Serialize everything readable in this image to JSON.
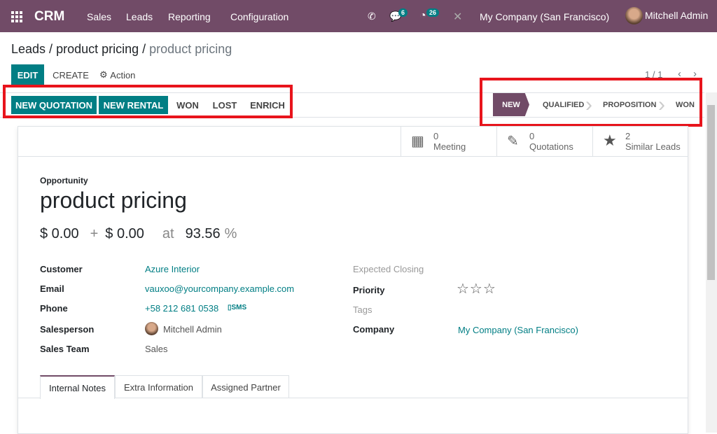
{
  "navbar": {
    "app": "CRM",
    "menus": [
      "Sales",
      "Leads",
      "Reporting",
      "Configuration"
    ],
    "messages_count": "6",
    "activities_count": "26",
    "company": "My Company (San Francisco)",
    "user": "Mitchell Admin",
    "color": "#714B67"
  },
  "breadcrumb": {
    "root": "Leads",
    "mid": "product pricing",
    "current": "product pricing"
  },
  "toolbar": {
    "edit": "EDIT",
    "create": "CREATE",
    "action": "Action",
    "pager": "1 / 1"
  },
  "statusbar": {
    "buttons": [
      "NEW QUOTATION",
      "NEW RENTAL",
      "WON",
      "LOST",
      "ENRICH"
    ],
    "stages": [
      "NEW",
      "QUALIFIED",
      "PROPOSITION",
      "WON"
    ],
    "active_stage": "NEW"
  },
  "smart_buttons": [
    {
      "count": "0",
      "label": "Meeting",
      "icon": "calendar-icon"
    },
    {
      "count": "0",
      "label": "Quotations",
      "icon": "edit-icon"
    },
    {
      "count": "2",
      "label": "Similar Leads",
      "icon": "star-icon"
    }
  ],
  "form": {
    "type": "Opportunity",
    "title": "product pricing",
    "revenue": "$ 0.00",
    "plus": "+",
    "recurring": "$ 0.00",
    "at": "at",
    "probability": "93.56",
    "pct": "%",
    "left": [
      {
        "label": "Customer",
        "value": "Azure Interior"
      },
      {
        "label": "Email",
        "value": "vauxoo@yourcompany.example.com"
      },
      {
        "label": "Phone",
        "value": "+58 212 681 0538",
        "extra": "SMS"
      },
      {
        "label": "Salesperson",
        "value": "Mitchell Admin"
      },
      {
        "label": "Sales Team",
        "value": "Sales"
      }
    ],
    "right": [
      {
        "label": "Expected Closing",
        "value": ""
      },
      {
        "label": "Priority",
        "value": "☆☆☆"
      },
      {
        "label": "Tags",
        "value": ""
      },
      {
        "label": "Company",
        "value": "My Company (San Francisco)"
      }
    ]
  },
  "tabs": [
    "Internal Notes",
    "Extra Information",
    "Assigned Partner"
  ],
  "annotation_color": "#e8141c"
}
